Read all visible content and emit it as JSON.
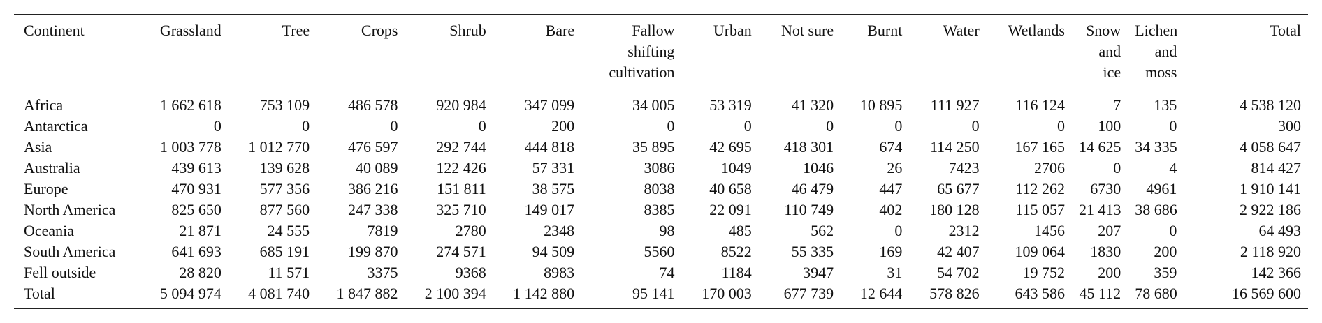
{
  "table": {
    "headers": [
      "Continent",
      "Grassland",
      "Tree",
      "Crops",
      "Shrub",
      "Bare",
      "Fallow shifting cultivation",
      "Urban",
      "Not sure",
      "Burnt",
      "Water",
      "Wetlands",
      "Snow and ice",
      "Lichen and moss",
      "Total"
    ],
    "rows": [
      [
        "Africa",
        "1 662 618",
        "753 109",
        "486 578",
        "920 984",
        "347 099",
        "34 005",
        "53 319",
        "41 320",
        "10 895",
        "111 927",
        "116 124",
        "7",
        "135",
        "4 538 120"
      ],
      [
        "Antarctica",
        "0",
        "0",
        "0",
        "0",
        "200",
        "0",
        "0",
        "0",
        "0",
        "0",
        "0",
        "100",
        "0",
        "300"
      ],
      [
        "Asia",
        "1 003 778",
        "1 012 770",
        "476 597",
        "292 744",
        "444 818",
        "35 895",
        "42 695",
        "418 301",
        "674",
        "114 250",
        "167 165",
        "14 625",
        "34 335",
        "4 058 647"
      ],
      [
        "Australia",
        "439 613",
        "139 628",
        "40 089",
        "122 426",
        "57 331",
        "3086",
        "1049",
        "1046",
        "26",
        "7423",
        "2706",
        "0",
        "4",
        "814 427"
      ],
      [
        "Europe",
        "470 931",
        "577 356",
        "386 216",
        "151 811",
        "38 575",
        "8038",
        "40 658",
        "46 479",
        "447",
        "65 677",
        "112 262",
        "6730",
        "4961",
        "1 910 141"
      ],
      [
        "North America",
        "825 650",
        "877 560",
        "247 338",
        "325 710",
        "149 017",
        "8385",
        "22 091",
        "110 749",
        "402",
        "180 128",
        "115 057",
        "21 413",
        "38 686",
        "2 922 186"
      ],
      [
        "Oceania",
        "21 871",
        "24 555",
        "7819",
        "2780",
        "2348",
        "98",
        "485",
        "562",
        "0",
        "2312",
        "1456",
        "207",
        "0",
        "64 493"
      ],
      [
        "South America",
        "641 693",
        "685 191",
        "199 870",
        "274 571",
        "94 509",
        "5560",
        "8522",
        "55 335",
        "169",
        "42 407",
        "109 064",
        "1830",
        "200",
        "2 118 920"
      ],
      [
        "Fell outside",
        "28 820",
        "11 571",
        "3375",
        "9368",
        "8983",
        "74",
        "1184",
        "3947",
        "31",
        "54 702",
        "19 752",
        "200",
        "359",
        "142 366"
      ],
      [
        "Total",
        "5 094 974",
        "4 081 740",
        "1 847 882",
        "2 100 394",
        "1 142 880",
        "95 141",
        "170 003",
        "677 739",
        "12 644",
        "578 826",
        "643 586",
        "45 112",
        "78 680",
        "16 569 600"
      ]
    ]
  }
}
